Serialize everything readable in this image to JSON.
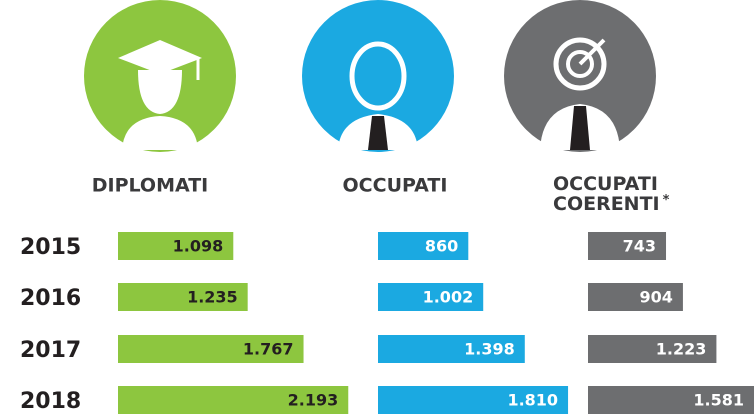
{
  "chart_data": {
    "type": "bar",
    "orientation": "horizontal",
    "categories": [
      "2015",
      "2016",
      "2017",
      "2018"
    ],
    "series": [
      {
        "name": "DIPLOMATI",
        "color": "#8dc63f",
        "values": [
          1098,
          1235,
          1767,
          2193
        ],
        "value_labels": [
          "1.098",
          "1.235",
          "1.767",
          "2.193"
        ]
      },
      {
        "name": "OCCUPATI",
        "color": "#1ba9e1",
        "values": [
          860,
          1002,
          1398,
          1810
        ],
        "value_labels": [
          "860",
          "1.002",
          "1.398",
          "1.810"
        ]
      },
      {
        "name": "OCCUPATI COERENTI",
        "color": "#6d6e70",
        "values": [
          743,
          904,
          1223,
          1581
        ],
        "value_labels": [
          "743",
          "904",
          "1.223",
          "1.581"
        ],
        "footnote_marker": "*"
      }
    ]
  }
}
